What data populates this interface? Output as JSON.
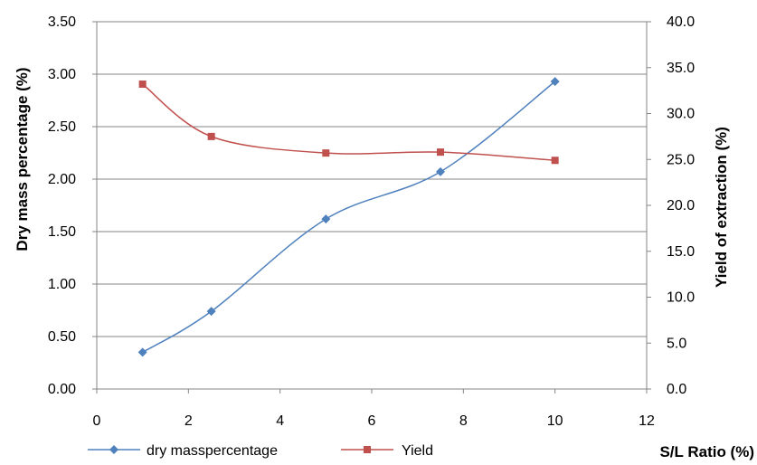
{
  "chart_data": {
    "type": "line",
    "title": "",
    "xlabel": "S/L Ratio (%)",
    "ylabel_left": "Dry mass  percentage  (%)",
    "ylabel_right": "Yield of extraction (%)",
    "xlim": [
      0,
      12
    ],
    "x_ticks": [
      "0",
      "2",
      "4",
      "6",
      "8",
      "10",
      "12"
    ],
    "ylim_left": [
      0,
      3.5
    ],
    "y_ticks_left": [
      "0.00",
      "0.50",
      "1.00",
      "1.50",
      "2.00",
      "2.50",
      "3.00",
      "3.50"
    ],
    "ylim_right": [
      0,
      40
    ],
    "y_ticks_right": [
      "0.0",
      "5.0",
      "10.0",
      "15.0",
      "20.0",
      "25.0",
      "30.0",
      "35.0",
      "40.0"
    ],
    "grid": "horizontal",
    "legend_position": "bottom",
    "series": [
      {
        "name": "dry masspercentage",
        "axis": "left",
        "marker": "diamond",
        "color": "#4f81bd",
        "x": [
          1,
          2.5,
          5,
          7.5,
          10
        ],
        "values": [
          0.35,
          0.74,
          1.62,
          2.07,
          2.93
        ]
      },
      {
        "name": "Yield",
        "axis": "right",
        "marker": "square",
        "color": "#c0504d",
        "x": [
          1,
          2.5,
          5,
          7.5,
          10
        ],
        "values": [
          33.2,
          27.5,
          25.7,
          25.8,
          24.9
        ]
      }
    ]
  }
}
